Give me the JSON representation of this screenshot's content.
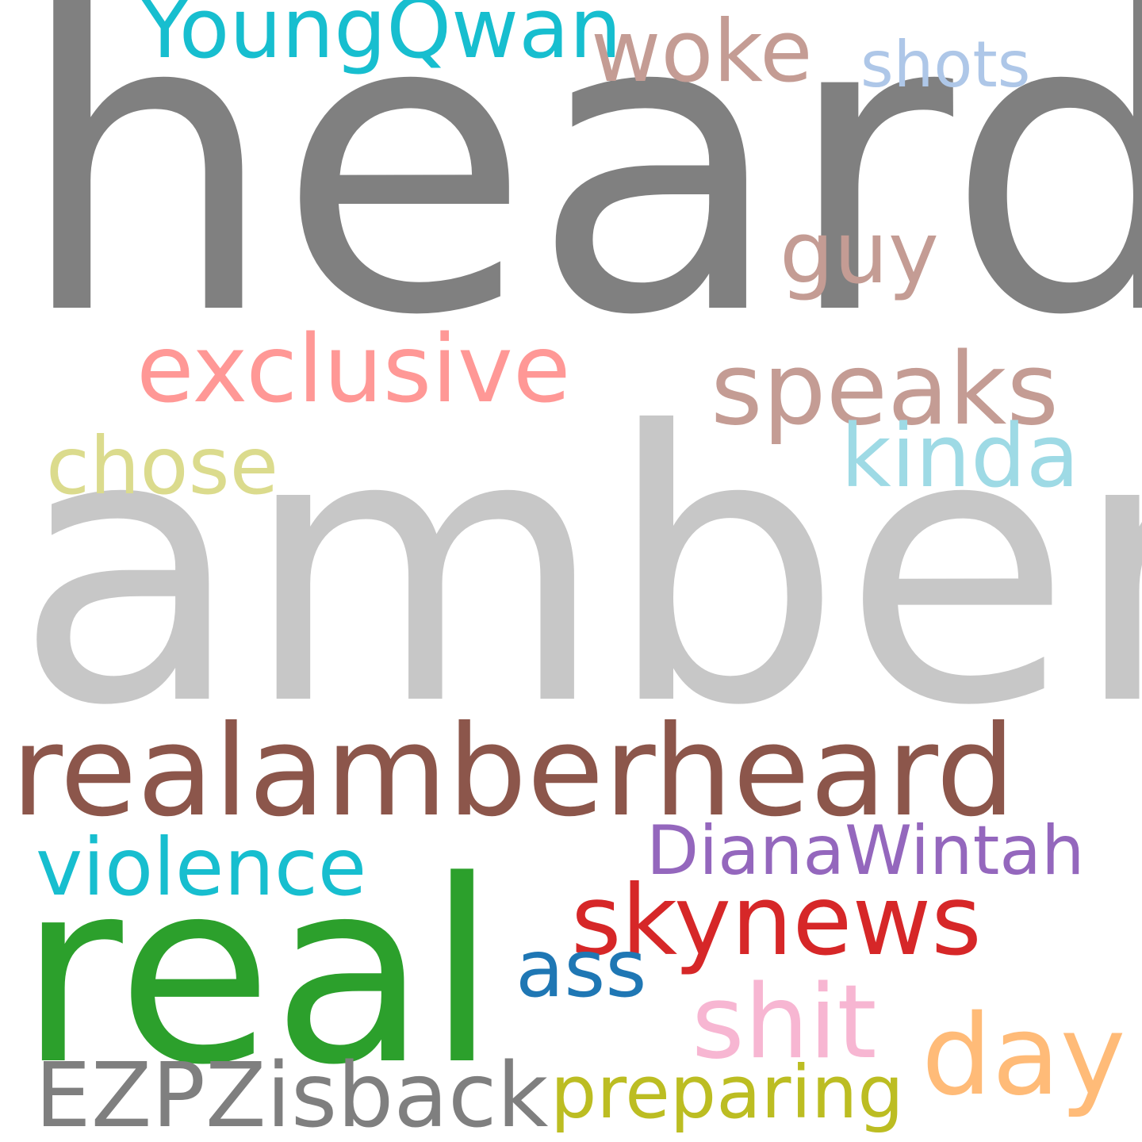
{
  "words": [
    {
      "id": "heard",
      "text": "heard",
      "color": "#808080"
    },
    {
      "id": "amber",
      "text": "amber",
      "color": "#c7c7c7"
    },
    {
      "id": "realamberheard",
      "text": "realamberheard",
      "color": "#8c564b"
    },
    {
      "id": "real",
      "text": "real",
      "color": "#2ca02c"
    },
    {
      "id": "youngqwan",
      "text": "YoungQwan",
      "color": "#17becf"
    },
    {
      "id": "woke",
      "text": "woke",
      "color": "#c49c94"
    },
    {
      "id": "shots",
      "text": "shots",
      "color": "#aec7e8"
    },
    {
      "id": "guy",
      "text": "guy",
      "color": "#c49c94"
    },
    {
      "id": "exclusive",
      "text": "exclusive",
      "color": "#ff9896"
    },
    {
      "id": "speaks",
      "text": "speaks",
      "color": "#c49c94"
    },
    {
      "id": "chose",
      "text": "chose",
      "color": "#dbdb8d"
    },
    {
      "id": "kinda",
      "text": "kinda",
      "color": "#9edae5"
    },
    {
      "id": "dianawintah",
      "text": "DianaWintah",
      "color": "#9467bd"
    },
    {
      "id": "violence",
      "text": "violence",
      "color": "#17becf"
    },
    {
      "id": "skynews",
      "text": "skynews",
      "color": "#d62728"
    },
    {
      "id": "ass",
      "text": "ass",
      "color": "#1f77b4"
    },
    {
      "id": "shit",
      "text": "shit",
      "color": "#f7b6d2"
    },
    {
      "id": "day",
      "text": "day",
      "color": "#ffbb78"
    },
    {
      "id": "ezpzisback",
      "text": "EZPZisback",
      "color": "#7f7f7f"
    },
    {
      "id": "preparing",
      "text": "preparing",
      "color": "#bcbd22"
    }
  ]
}
